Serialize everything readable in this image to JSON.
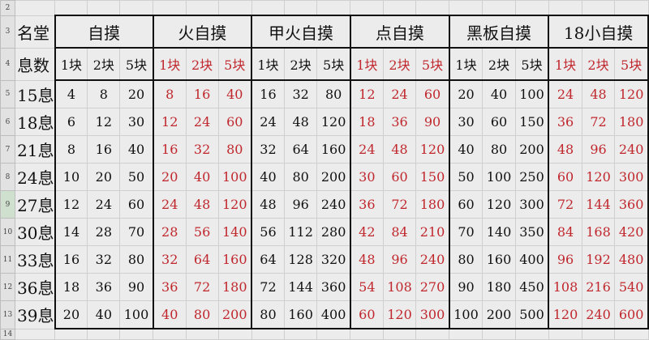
{
  "row_numbers": [
    "2",
    "3",
    "4",
    "5",
    "6",
    "7",
    "8",
    "9",
    "10",
    "11",
    "12",
    "13",
    "14"
  ],
  "selected_row": "9",
  "colors": {
    "red": "#c0272d",
    "black": "#111111"
  },
  "header": {
    "name_top": "名堂",
    "name_bottom": "息数",
    "groups": [
      {
        "label": "自摸",
        "red": false,
        "sub": [
          "1块",
          "2块",
          "5块"
        ]
      },
      {
        "label": "火自摸",
        "red": true,
        "sub": [
          "1块",
          "2块",
          "5块"
        ]
      },
      {
        "label": "甲火自摸",
        "red": false,
        "sub": [
          "1块",
          "2块",
          "5块"
        ]
      },
      {
        "label": "点自摸",
        "red": true,
        "sub": [
          "1块",
          "2块",
          "5块"
        ]
      },
      {
        "label": "黑板自摸",
        "red": false,
        "sub": [
          "1块",
          "2块",
          "5块"
        ]
      },
      {
        "label": "18小自摸",
        "red": true,
        "sub": [
          "1块",
          "2块",
          "5块"
        ]
      }
    ]
  },
  "rows": [
    {
      "name": "15息",
      "values": [
        4,
        8,
        20,
        8,
        16,
        40,
        16,
        32,
        80,
        12,
        24,
        60,
        20,
        40,
        100,
        24,
        48,
        120
      ]
    },
    {
      "name": "18息",
      "values": [
        6,
        12,
        30,
        12,
        24,
        60,
        24,
        48,
        120,
        18,
        36,
        90,
        30,
        60,
        150,
        36,
        72,
        180
      ]
    },
    {
      "name": "21息",
      "values": [
        8,
        16,
        40,
        16,
        32,
        80,
        32,
        64,
        160,
        24,
        48,
        120,
        40,
        80,
        200,
        48,
        96,
        240
      ]
    },
    {
      "name": "24息",
      "values": [
        10,
        20,
        50,
        20,
        40,
        100,
        40,
        80,
        200,
        30,
        60,
        150,
        50,
        100,
        250,
        60,
        120,
        300
      ]
    },
    {
      "name": "27息",
      "values": [
        12,
        24,
        60,
        24,
        48,
        120,
        48,
        96,
        240,
        36,
        72,
        180,
        60,
        120,
        300,
        72,
        144,
        360
      ]
    },
    {
      "name": "30息",
      "values": [
        14,
        28,
        70,
        28,
        56,
        140,
        56,
        112,
        280,
        42,
        84,
        210,
        70,
        140,
        350,
        84,
        168,
        420
      ]
    },
    {
      "name": "33息",
      "values": [
        16,
        32,
        80,
        32,
        64,
        160,
        64,
        128,
        320,
        48,
        96,
        240,
        80,
        160,
        400,
        96,
        192,
        480
      ]
    },
    {
      "name": "36息",
      "values": [
        18,
        36,
        90,
        36,
        72,
        180,
        72,
        144,
        360,
        54,
        108,
        270,
        90,
        180,
        450,
        108,
        216,
        540
      ]
    },
    {
      "name": "39息",
      "values": [
        20,
        40,
        100,
        40,
        80,
        200,
        80,
        160,
        400,
        60,
        120,
        300,
        100,
        200,
        500,
        120,
        240,
        600
      ]
    }
  ]
}
